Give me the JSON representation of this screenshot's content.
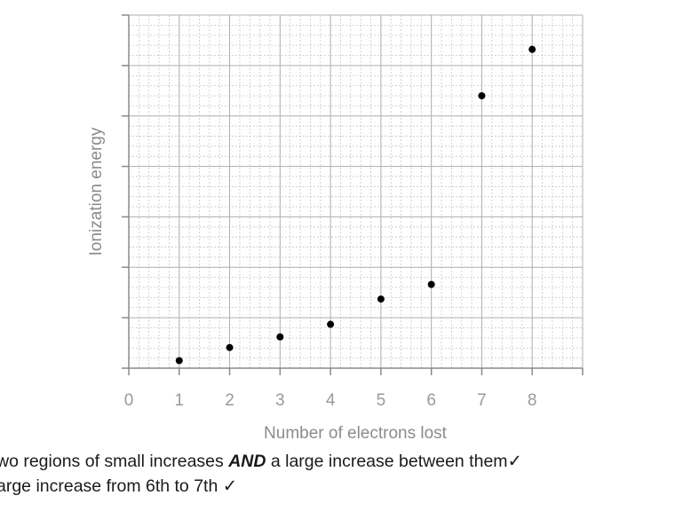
{
  "chart_data": {
    "type": "scatter",
    "title": "",
    "xlabel": "Number of electrons lost",
    "ylabel": "Ionization energy",
    "xlim": [
      0,
      9
    ],
    "ylim": [
      0,
      7
    ],
    "x_ticks": [
      "0",
      "1",
      "2",
      "3",
      "4",
      "5",
      "6",
      "7",
      "8"
    ],
    "y_ticks_labeled": false,
    "grid": true,
    "legend": "none",
    "points": [
      {
        "x": 1,
        "y": 0.15
      },
      {
        "x": 2,
        "y": 0.41
      },
      {
        "x": 3,
        "y": 0.62
      },
      {
        "x": 4,
        "y": 0.87
      },
      {
        "x": 5,
        "y": 1.37
      },
      {
        "x": 6,
        "y": 1.66
      },
      {
        "x": 7,
        "y": 5.4
      },
      {
        "x": 8,
        "y": 6.32
      }
    ],
    "point_color": "#000000",
    "grid_color": "#c8c8c8"
  },
  "answers": {
    "line1": {
      "before": "wo regions of small increases ",
      "emphasis": "AND",
      "after": " a large increase between them✓"
    },
    "line2": {
      "text": "arge increase from 6th to 7th ✓"
    }
  }
}
